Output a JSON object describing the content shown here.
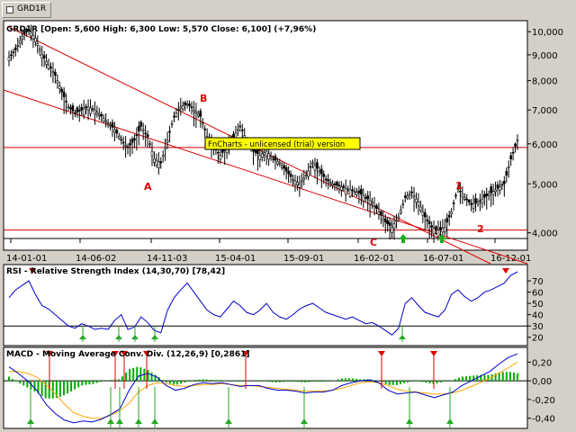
{
  "app": {
    "tab_label": "GRD1R"
  },
  "price_panel": {
    "header": "GRD1R [Open: 5,600  High: 6,300  Low: 5,570  Close: 6,100] (+7,96%)",
    "watermark": "FnCharts - unlicensed (trial) version",
    "annotations": [
      "A",
      "B",
      "C",
      "1",
      "2"
    ]
  },
  "rsi_panel": {
    "header": "RSI - Relative Strength Index (14,30,70) [78,42]"
  },
  "macd_panel": {
    "header": "MACD - Moving Average Conv. Div. (12,26,9) [0,2861]"
  },
  "colors": {
    "background": "#ffffff",
    "frame": "#d4d0c8",
    "candles": "#000000",
    "channel": "#dd0000",
    "support": "#cc0000",
    "rsi": "#0000cc",
    "macd": "#0000cc",
    "signal": "#ffa500",
    "histogram": "#00aa00",
    "buy_arrow": "#22aa22",
    "sell_arrow": "#dd0000",
    "watermark_bg": "#ffff00"
  },
  "chart_data": [
    {
      "type": "candlestick",
      "title": "GRD1R [Open: 5,600  High: 6,300  Low: 5,570  Close: 6,100] (+7,96%)",
      "x_ticks": [
        "14-01-01",
        "14-06-02",
        "14-11-03",
        "15-04-01",
        "15-09-01",
        "16-02-01",
        "16-07-01",
        "16-12-01"
      ],
      "y_ticks": [
        "10,000",
        "9,000",
        "8,000",
        "7,000",
        "6,000",
        "5,000",
        "4,000"
      ],
      "y_tick_values": [
        10,
        9,
        8,
        7,
        6,
        5,
        4
      ],
      "ylim": [
        3.93,
        10.3
      ],
      "scale": "log",
      "closes": [
        8.9,
        9.2,
        9.8,
        10.1,
        9.7,
        9.0,
        8.6,
        8.2,
        7.6,
        7.1,
        6.9,
        7.0,
        7.1,
        7.0,
        6.8,
        6.6,
        6.4,
        6.1,
        5.9,
        6.1,
        6.5,
        6.2,
        5.6,
        5.5,
        6.1,
        6.8,
        7.1,
        7.2,
        7.0,
        6.8,
        6.2,
        5.9,
        5.7,
        5.9,
        6.2,
        6.5,
        6.1,
        5.8,
        5.7,
        5.8,
        5.6,
        5.5,
        5.3,
        5.1,
        5.0,
        5.2,
        5.5,
        5.3,
        5.1,
        5.0,
        4.95,
        4.9,
        4.85,
        4.8,
        4.7,
        4.6,
        4.4,
        4.2,
        4.1,
        4.3,
        4.7,
        4.8,
        4.6,
        4.3,
        4.1,
        4.05,
        4.1,
        4.4,
        4.9,
        4.7,
        4.55,
        4.6,
        4.7,
        4.8,
        4.9,
        5.0,
        5.6,
        6.1
      ],
      "channel_upper": {
        "x0": "14-01-01",
        "y0": 10.2,
        "x1": "16-12-01",
        "y1": 3.95
      },
      "channel_lower": {
        "x0": "14-01-01",
        "y0": 8.0
      },
      "horizontal_levels": [
        5.9,
        4.05
      ],
      "annotations": [
        "A",
        "B",
        "C",
        "1",
        "2"
      ]
    },
    {
      "type": "line",
      "title": "RSI - Relative Strength Index (14,30,70) [78,42]",
      "y_ticks": [
        "70",
        "60",
        "50",
        "40",
        "30",
        "20"
      ],
      "y_tick_values": [
        70,
        60,
        50,
        40,
        30,
        20
      ],
      "ylim": [
        15,
        78
      ],
      "reference_lines": [
        30
      ],
      "values": [
        55,
        62,
        66,
        70,
        58,
        48,
        45,
        40,
        35,
        30,
        28,
        32,
        30,
        27,
        28,
        27,
        35,
        40,
        27,
        29,
        38,
        33,
        26,
        24,
        44,
        55,
        62,
        68,
        60,
        52,
        44,
        40,
        38,
        45,
        52,
        48,
        42,
        40,
        44,
        50,
        42,
        38,
        36,
        40,
        45,
        48,
        50,
        46,
        42,
        40,
        38,
        36,
        38,
        35,
        32,
        33,
        30,
        26,
        22,
        28,
        50,
        55,
        48,
        42,
        40,
        38,
        44,
        58,
        62,
        56,
        52,
        55,
        60,
        62,
        65,
        68,
        75,
        78
      ]
    },
    {
      "type": "line",
      "title": "MACD - Moving Average Conv. Div. (12,26,9) [0,2861]",
      "y_ticks": [
        "0,20",
        "0,00",
        "-0,20",
        "-0,40"
      ],
      "y_tick_values": [
        0.2,
        0.0,
        -0.2,
        -0.4
      ],
      "ylim": [
        -0.48,
        0.3
      ],
      "series": [
        {
          "name": "MACD",
          "values": [
            0.15,
            0.08,
            0.0,
            -0.1,
            -0.25,
            -0.35,
            -0.42,
            -0.45,
            -0.43,
            -0.44,
            -0.41,
            -0.36,
            -0.3,
            -0.1,
            0.05,
            0.08,
            0.04,
            -0.05,
            -0.1,
            -0.08,
            -0.04,
            -0.02,
            -0.03,
            -0.02,
            -0.04,
            -0.06,
            -0.05,
            -0.05,
            -0.08,
            -0.1,
            -0.1,
            -0.11,
            -0.13,
            -0.12,
            -0.12,
            -0.1,
            -0.05,
            -0.02,
            0.0,
            0.01,
            -0.02,
            -0.1,
            -0.14,
            -0.13,
            -0.12,
            -0.15,
            -0.18,
            -0.15,
            -0.12,
            -0.05,
            0.0,
            0.05,
            0.1,
            0.18,
            0.25,
            0.29
          ]
        },
        {
          "name": "Signal",
          "values": [
            0.1,
            0.1,
            0.08,
            0.04,
            -0.04,
            -0.14,
            -0.25,
            -0.34,
            -0.38,
            -0.4,
            -0.4,
            -0.37,
            -0.32,
            -0.24,
            -0.12,
            -0.05,
            -0.02,
            -0.03,
            -0.05,
            -0.06,
            -0.05,
            -0.04,
            -0.04,
            -0.03,
            -0.04,
            -0.05,
            -0.05,
            -0.06,
            -0.07,
            -0.08,
            -0.09,
            -0.1,
            -0.11,
            -0.11,
            -0.11,
            -0.1,
            -0.08,
            -0.05,
            -0.02,
            -0.01,
            -0.02,
            -0.05,
            -0.09,
            -0.11,
            -0.12,
            -0.13,
            -0.14,
            -0.14,
            -0.13,
            -0.1,
            -0.06,
            -0.02,
            0.03,
            0.08,
            0.14,
            0.2
          ]
        }
      ]
    }
  ]
}
